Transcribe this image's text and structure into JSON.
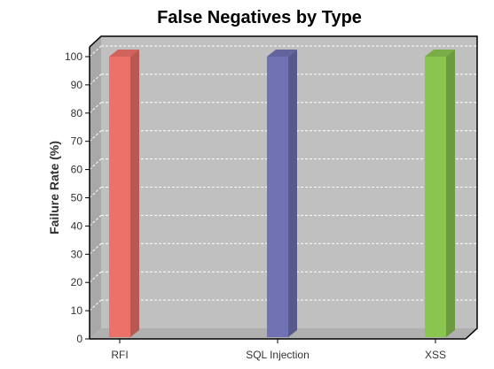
{
  "chart_data": {
    "type": "bar",
    "title": "False Negatives by Type",
    "xlabel": "",
    "ylabel": "Failure Rate (%)",
    "categories": [
      "RFI",
      "SQL Injection",
      "XSS"
    ],
    "values": [
      100,
      100,
      100
    ],
    "bar_colors": [
      "#ec7168",
      "#7072b4",
      "#8ac54f"
    ],
    "ylim": [
      0,
      100
    ],
    "yticks": [
      0,
      10,
      20,
      30,
      40,
      50,
      60,
      70,
      80,
      90,
      100
    ],
    "grid": true,
    "legend": "none",
    "plot_background": "#c0c0c0",
    "style": "3d"
  }
}
